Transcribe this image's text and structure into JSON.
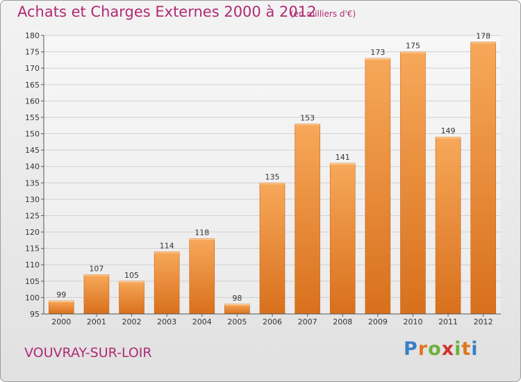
{
  "header": {
    "title": "Achats et Charges Externes 2000 à 2012",
    "unit": "(en milliers d'€)"
  },
  "footer": {
    "city": "VOUVRAY-SUR-LOIR",
    "logo": [
      "P",
      "r",
      "o",
      "x",
      "i",
      "t",
      "i"
    ]
  },
  "colors": {
    "title": "#b02a73",
    "bar_light": "#f7a85a",
    "bar_dark": "#d8701c"
  },
  "chart_data": {
    "type": "bar",
    "categories": [
      "2000",
      "2001",
      "2002",
      "2003",
      "2004",
      "2005",
      "2006",
      "2007",
      "2008",
      "2009",
      "2010",
      "2011",
      "2012"
    ],
    "values": [
      99,
      107,
      105,
      114,
      118,
      98,
      135,
      153,
      141,
      173,
      175,
      149,
      178
    ],
    "title": "Achats et Charges Externes 2000 à 2012",
    "xlabel": "",
    "ylabel": "",
    "ylim": [
      95,
      180
    ],
    "yticks": [
      95,
      100,
      105,
      110,
      115,
      120,
      125,
      130,
      135,
      140,
      145,
      150,
      155,
      160,
      165,
      170,
      175,
      180
    ],
    "grid": true,
    "data_labels": true
  }
}
